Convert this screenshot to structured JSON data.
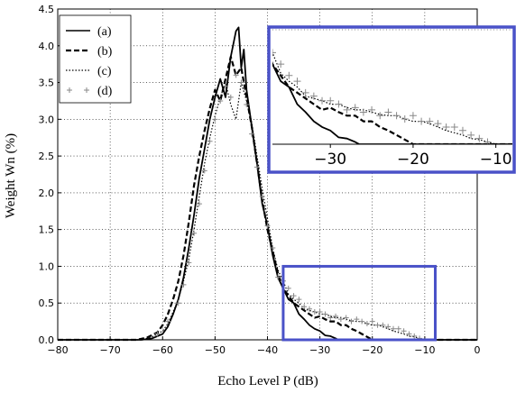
{
  "chart_data": {
    "type": "line",
    "xlabel": "Echo Level P (dB)",
    "ylabel": "Weight Wn (%)",
    "xlim": [
      -80,
      0
    ],
    "ylim": [
      0,
      4.5
    ],
    "x_ticks": [
      "−80",
      "−70",
      "−60",
      "−50",
      "−40",
      "−30",
      "−20",
      "−10",
      "0"
    ],
    "y_ticks": [
      "0.0",
      "0.5",
      "1.0",
      "1.5",
      "2.0",
      "2.5",
      "3.0",
      "3.5",
      "4.0",
      "4.5"
    ],
    "legend_position": "top-left",
    "series": [
      {
        "name": "(a)",
        "style": "solid",
        "color": "#000000",
        "x": [
          -80,
          -64,
          -62,
          -60,
          -59,
          -58,
          -57,
          -56,
          -55,
          -54,
          -53,
          -52,
          -51,
          -50,
          -49,
          -48,
          -47,
          -46,
          -45.5,
          -45,
          -44.5,
          -44,
          -43,
          -42,
          -41,
          -40,
          -39,
          -38,
          -37,
          -36,
          -35,
          -34,
          -33,
          -32,
          -31,
          -30,
          -29,
          -28,
          -27,
          -26.5,
          0
        ],
        "y": [
          0,
          0,
          0.02,
          0.08,
          0.18,
          0.35,
          0.55,
          0.85,
          1.25,
          1.7,
          2.2,
          2.6,
          3.0,
          3.3,
          3.55,
          3.3,
          3.85,
          4.2,
          4.25,
          3.7,
          3.95,
          3.4,
          2.9,
          2.4,
          1.85,
          1.55,
          1.15,
          0.85,
          0.7,
          0.55,
          0.5,
          0.35,
          0.28,
          0.2,
          0.15,
          0.12,
          0.06,
          0.05,
          0.02,
          0,
          0
        ]
      },
      {
        "name": "(b)",
        "style": "dashed",
        "color": "#000000",
        "x": [
          -80,
          -65,
          -63,
          -61,
          -60,
          -59,
          -58,
          -57,
          -56,
          -55,
          -54,
          -53,
          -52,
          -51,
          -50,
          -49,
          -48,
          -47,
          -46,
          -45,
          -44,
          -43,
          -42,
          -41,
          -40,
          -39,
          -38,
          -37,
          -36,
          -35,
          -34,
          -33,
          -32,
          -31,
          -30,
          -29,
          -28,
          -27,
          -26,
          -25,
          -24,
          -23,
          -22,
          -21,
          -20,
          0
        ],
        "y": [
          0,
          0,
          0.03,
          0.1,
          0.2,
          0.35,
          0.55,
          0.8,
          1.15,
          1.6,
          2.1,
          2.5,
          2.85,
          3.15,
          3.4,
          3.25,
          3.55,
          3.85,
          3.6,
          3.7,
          3.3,
          2.9,
          2.4,
          1.9,
          1.5,
          1.2,
          0.9,
          0.7,
          0.6,
          0.5,
          0.45,
          0.4,
          0.35,
          0.3,
          0.32,
          0.28,
          0.25,
          0.25,
          0.2,
          0.2,
          0.15,
          0.12,
          0.08,
          0.04,
          0,
          0
        ]
      },
      {
        "name": "(c)",
        "style": "dotted",
        "color": "#000000",
        "x": [
          -80,
          -64,
          -62,
          -60,
          -59,
          -58,
          -57,
          -56,
          -55,
          -54,
          -53,
          -52,
          -51,
          -50,
          -49,
          -48,
          -47,
          -46,
          -45,
          -44,
          -43,
          -42,
          -41,
          -40,
          -39,
          -38,
          -37,
          -36,
          -35,
          -34,
          -33,
          -32,
          -31,
          -30,
          -29,
          -28,
          -27,
          -26,
          -25,
          -24,
          -23,
          -22,
          -21,
          -20,
          -19,
          -18,
          -17,
          -16,
          -15,
          -14,
          -13,
          -12,
          -11,
          -10,
          0
        ],
        "y": [
          0,
          0,
          0.04,
          0.12,
          0.22,
          0.38,
          0.55,
          0.8,
          1.1,
          1.5,
          1.95,
          2.4,
          2.75,
          3.05,
          3.3,
          3.5,
          3.2,
          3.0,
          3.5,
          3.25,
          2.95,
          2.5,
          2.05,
          1.65,
          1.25,
          0.95,
          0.8,
          0.62,
          0.55,
          0.5,
          0.42,
          0.4,
          0.38,
          0.35,
          0.35,
          0.32,
          0.3,
          0.3,
          0.28,
          0.26,
          0.25,
          0.25,
          0.22,
          0.2,
          0.2,
          0.18,
          0.15,
          0.12,
          0.1,
          0.08,
          0.05,
          0.04,
          0.02,
          0,
          0
        ]
      },
      {
        "name": "(d)",
        "style": "markers",
        "marker": "+",
        "color": "#888888",
        "x": [
          -61,
          -59,
          -57,
          -56,
          -55,
          -54,
          -53,
          -52,
          -51,
          -50,
          -49,
          -48,
          -47,
          -46,
          -45,
          -44,
          -43,
          -42,
          -41,
          -40,
          -39,
          -38,
          -37,
          -36,
          -35,
          -34,
          -33,
          -32,
          -31,
          -30,
          -29,
          -28,
          -27,
          -26,
          -25,
          -24,
          -23,
          -22,
          -21,
          -20,
          -19,
          -18,
          -17,
          -16,
          -15,
          -14,
          -13,
          -12,
          -11
        ],
        "y": [
          0.08,
          0.25,
          0.5,
          0.75,
          1.05,
          1.45,
          1.85,
          2.3,
          2.7,
          3.0,
          3.25,
          3.45,
          3.3,
          3.6,
          3.5,
          3.2,
          2.8,
          2.35,
          1.95,
          1.55,
          1.25,
          0.85,
          0.8,
          0.7,
          0.6,
          0.55,
          0.45,
          0.42,
          0.38,
          0.38,
          0.35,
          0.3,
          0.32,
          0.28,
          0.3,
          0.25,
          0.28,
          0.25,
          0.22,
          0.25,
          0.2,
          0.2,
          0.18,
          0.15,
          0.15,
          0.12,
          0.08,
          0.05,
          0.02
        ]
      }
    ],
    "highlight_box": {
      "x": [
        -37,
        -8
      ],
      "y": [
        0,
        1.0
      ],
      "color": "#4a52c8"
    },
    "inset": {
      "xlim": [
        -37,
        -8
      ],
      "ylim": [
        0,
        1.0
      ],
      "x_ticks": [
        "−30",
        "−20",
        "−10"
      ],
      "border_color": "#4a52c8"
    }
  }
}
